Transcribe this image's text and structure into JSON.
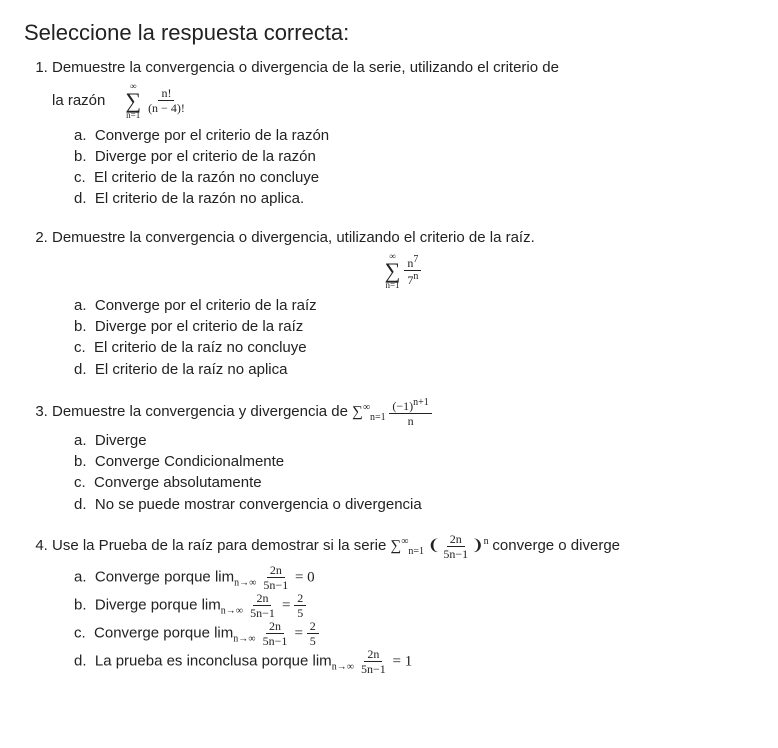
{
  "title": "Seleccione la respuesta correcta:",
  "q1": {
    "prompt_line1": "Demuestre la convergencia o divergencia de la serie, utilizando el criterio de",
    "razon_label": "la razón",
    "sum_top": "∞",
    "sum_bot": "n=1",
    "frac_num": "n!",
    "frac_den": "(n − 4)!",
    "a": "Converge por el criterio de la razón",
    "b": "Diverge por el criterio de la razón",
    "c": "El criterio de la razón no concluye",
    "d": "El criterio de la razón no aplica."
  },
  "q2": {
    "prompt": "Demuestre la convergencia o divergencia, utilizando el criterio de la raíz.",
    "sum_top": "∞",
    "sum_bot": "n=1",
    "frac_num_base": "n",
    "frac_num_exp": "7",
    "frac_den_base": "7",
    "frac_den_exp": "n",
    "a": "Converge por el criterio de la raíz",
    "b": "Diverge por el criterio de la raíz",
    "c": "El criterio de la raíz no concluye",
    "d": "El criterio de la raíz no aplica"
  },
  "q3": {
    "prompt_pre": "Demuestre la convergencia y divergencia de ",
    "sum_inline": "∑",
    "sum_top": "∞",
    "sum_bot": "n=1",
    "frac_num_pre": "(−1)",
    "frac_num_exp": "n+1",
    "frac_den": "n",
    "a": "Diverge",
    "b": "Converge Condicionalmente",
    "c": "Converge absolutamente",
    "d": "No se puede mostrar convergencia o divergencia"
  },
  "q4": {
    "prompt_pre": "Use la Prueba de la raíz  para demostrar si la serie ",
    "sum_top": "∞",
    "sum_bot": "n=1",
    "inner_num": "2n",
    "inner_den": "5n−1",
    "outer_exp": "n",
    "prompt_post": " converge o diverge",
    "a_pre": "Converge porque lim",
    "a_sub": "n→∞",
    "a_num": "2n",
    "a_den": "5n−1",
    "a_eq": " = 0",
    "b_pre": "Diverge porque lim",
    "b_num": "2n",
    "b_den": "5n−1",
    "b_rhs_num": "2",
    "b_rhs_den": "5",
    "c_pre": "Converge porque lim",
    "c_num": "2n",
    "c_den": "5n−1",
    "c_rhs_num": "2",
    "c_rhs_den": "5",
    "d_pre": "La prueba es inconclusa porque lim",
    "d_num": "2n",
    "d_den": "5n−1",
    "d_eq": " = 1"
  },
  "letters": {
    "a": "a.",
    "b": "b.",
    "c": "c.",
    "d": "d."
  }
}
